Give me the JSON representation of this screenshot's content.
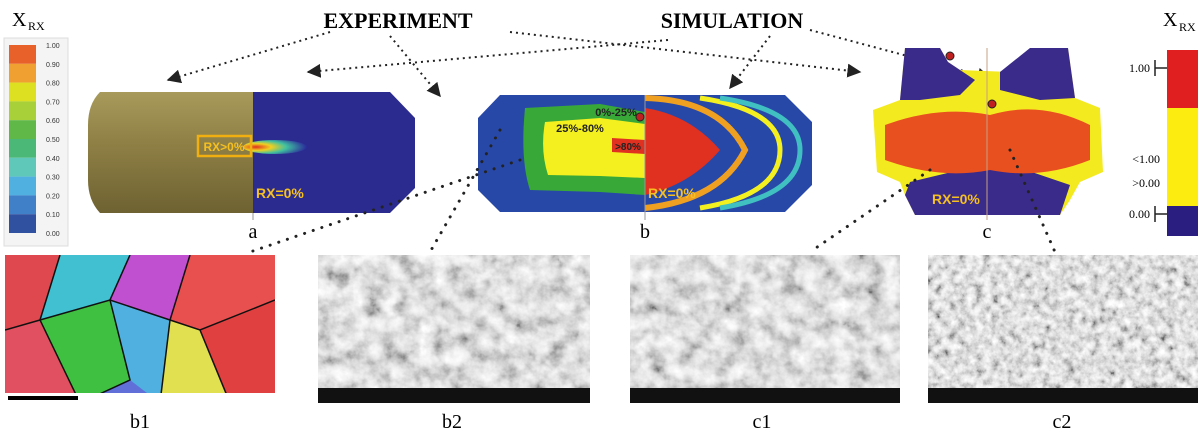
{
  "left_legend": {
    "title": "X",
    "subscript": "RX",
    "ticks": [
      "1.00",
      "0.90",
      "0.80",
      "0.70",
      "0.60",
      "0.50",
      "0.40",
      "0.30",
      "0.20",
      "0.10",
      "0.00"
    ]
  },
  "headings": {
    "experiment": "EXPERIMENT",
    "simulation": "SIMULATION"
  },
  "panels": {
    "a": {
      "label": "a",
      "experiment_label": "RX>0%",
      "simulation_label": "RX=0%"
    },
    "b": {
      "label": "b",
      "zones": [
        "0%-25%",
        "25%-80%",
        ">80%"
      ],
      "simulation_label": "RX=0%"
    },
    "c": {
      "label": "c",
      "simulation_label": "RX=0%"
    }
  },
  "right_legend": {
    "title": "X",
    "subscript": "RX",
    "ticks": [
      "1.00",
      "<1.00",
      ">0.00",
      "0.00"
    ]
  },
  "micrographs": [
    {
      "label": "b1"
    },
    {
      "label": "b2"
    },
    {
      "label": "c1"
    },
    {
      "label": "c2"
    }
  ]
}
